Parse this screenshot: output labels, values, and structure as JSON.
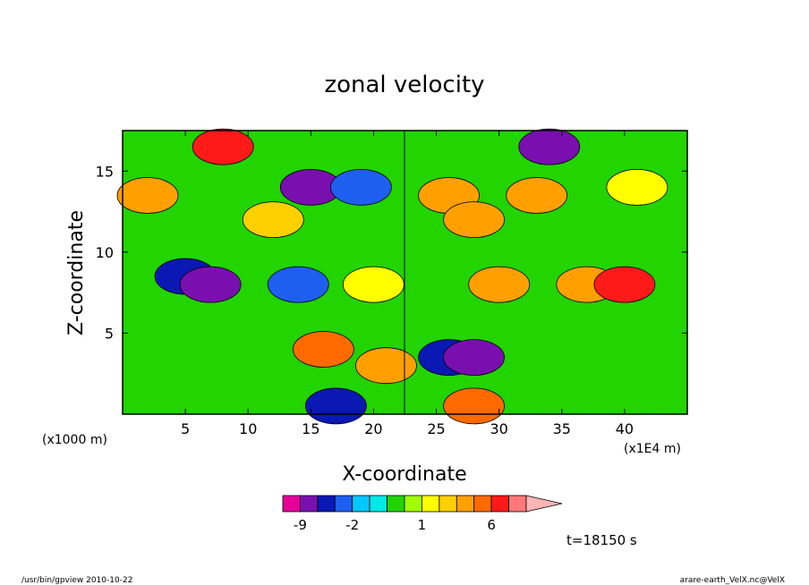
{
  "chart_data": {
    "type": "heatmap",
    "title": "zonal velocity",
    "xlabel": "X-coordinate",
    "ylabel": "Z-coordinate",
    "x_unit": "(x1E4 m)",
    "y_unit": "(x1000 m)",
    "xlim": [
      0,
      45
    ],
    "ylim": [
      0,
      17.5
    ],
    "x_ticks": [
      5,
      10,
      15,
      20,
      25,
      30,
      35,
      40
    ],
    "y_ticks": [
      5,
      10,
      15
    ],
    "colorbar": {
      "levels": [
        -9,
        -6,
        -4,
        -2,
        -1,
        -0.5,
        0.5,
        1,
        1.5,
        2,
        4,
        6,
        8,
        12
      ],
      "tick_labels": [
        "-9",
        "-2",
        "1",
        "6"
      ],
      "colors": [
        "#e5009a",
        "#7a0fb0",
        "#0a18b4",
        "#1e5ff0",
        "#00c8ff",
        "#00e8e8",
        "#22d400",
        "#a0ff00",
        "#ffff00",
        "#ffd000",
        "#ffa000",
        "#ff6a00",
        "#ff1a1a",
        "#ff7878",
        "#ffb4b4"
      ]
    },
    "cells": [
      {
        "x": 2,
        "z": 13.5,
        "v": 3
      },
      {
        "x": 5,
        "z": 8.5,
        "v": -5
      },
      {
        "x": 7,
        "z": 8,
        "v": -8
      },
      {
        "x": 8,
        "z": 16.5,
        "v": 7
      },
      {
        "x": 12,
        "z": 12,
        "v": 1.5
      },
      {
        "x": 15,
        "z": 14,
        "v": -7
      },
      {
        "x": 14,
        "z": 8,
        "v": -3
      },
      {
        "x": 16,
        "z": 4,
        "v": 4
      },
      {
        "x": 19,
        "z": 14,
        "v": -4
      },
      {
        "x": 20,
        "z": 8,
        "v": 1
      },
      {
        "x": 21,
        "z": 3,
        "v": 3
      },
      {
        "x": 26,
        "z": 13.5,
        "v": 3
      },
      {
        "x": 26,
        "z": 3.5,
        "v": -6
      },
      {
        "x": 28,
        "z": 3.5,
        "v": -8
      },
      {
        "x": 28,
        "z": 12,
        "v": 2
      },
      {
        "x": 30,
        "z": 8,
        "v": 2
      },
      {
        "x": 33,
        "z": 13.5,
        "v": 3.5
      },
      {
        "x": 34,
        "z": 16.5,
        "v": -7
      },
      {
        "x": 37,
        "z": 8,
        "v": 2
      },
      {
        "x": 40,
        "z": 8,
        "v": 6
      },
      {
        "x": 41,
        "z": 14,
        "v": 1
      },
      {
        "x": 28,
        "z": 0.5,
        "v": 5
      },
      {
        "x": 17,
        "z": 0.5,
        "v": -6
      }
    ]
  },
  "time_label": "t=18150 s",
  "footer": {
    "left": "/usr/bin/gpview   2010-10-22",
    "right": "arare-earth_VelX.nc@VelX"
  }
}
